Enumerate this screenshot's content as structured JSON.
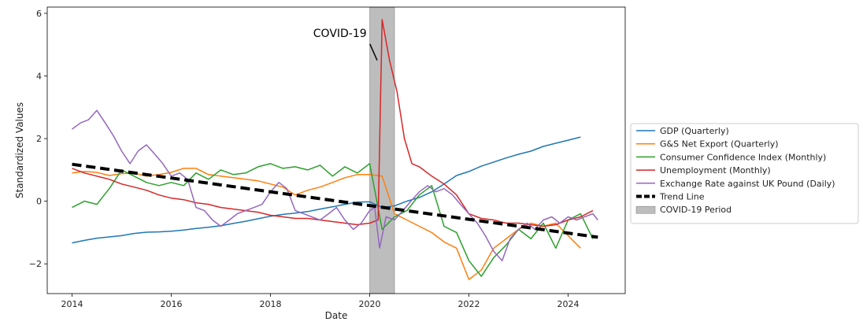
{
  "chart_data": {
    "type": "line",
    "xlabel": "Date",
    "ylabel": "Standardized Values",
    "xlim": [
      2013.5,
      2025.15
    ],
    "ylim": [
      -2.95,
      6.2
    ],
    "x_ticks": [
      2014,
      2016,
      2018,
      2020,
      2022,
      2024
    ],
    "y_ticks": [
      -2,
      0,
      2,
      4,
      6
    ],
    "grid": false,
    "legend": {
      "placement": "right-outside"
    },
    "series": [
      {
        "name": "GDP (Quarterly)",
        "color": "#1f77b4",
        "x": [
          2014.0,
          2014.25,
          2014.5,
          2014.75,
          2015.0,
          2015.25,
          2015.5,
          2015.75,
          2016.0,
          2016.25,
          2016.5,
          2016.75,
          2017.0,
          2017.25,
          2017.5,
          2017.75,
          2018.0,
          2018.25,
          2018.5,
          2018.75,
          2019.0,
          2019.25,
          2019.5,
          2019.75,
          2020.0,
          2020.25,
          2020.5,
          2020.75,
          2021.0,
          2021.25,
          2021.5,
          2021.75,
          2022.0,
          2022.25,
          2022.5,
          2022.75,
          2023.0,
          2023.25,
          2023.5,
          2023.75,
          2024.0,
          2024.25
        ],
        "y": [
          -1.33,
          -1.25,
          -1.18,
          -1.14,
          -1.1,
          -1.03,
          -0.99,
          -0.98,
          -0.96,
          -0.92,
          -0.87,
          -0.83,
          -0.78,
          -0.71,
          -0.64,
          -0.56,
          -0.48,
          -0.42,
          -0.38,
          -0.33,
          -0.25,
          -0.18,
          -0.1,
          -0.03,
          -0.02,
          -0.2,
          -0.15,
          0.0,
          0.12,
          0.3,
          0.55,
          0.82,
          0.95,
          1.12,
          1.25,
          1.38,
          1.5,
          1.6,
          1.75,
          1.85,
          1.95,
          2.05
        ]
      },
      {
        "name": "G&S Net Export (Quarterly)",
        "color": "#ff7f0e",
        "x": [
          2014.0,
          2014.25,
          2014.5,
          2014.75,
          2015.0,
          2015.25,
          2015.5,
          2015.75,
          2016.0,
          2016.25,
          2016.5,
          2016.75,
          2017.0,
          2017.25,
          2017.5,
          2017.75,
          2018.0,
          2018.25,
          2018.5,
          2018.75,
          2019.0,
          2019.25,
          2019.5,
          2019.75,
          2020.0,
          2020.25,
          2020.5,
          2020.75,
          2021.0,
          2021.25,
          2021.5,
          2021.75,
          2022.0,
          2022.25,
          2022.5,
          2022.75,
          2023.0,
          2023.25,
          2023.5,
          2023.75,
          2024.0,
          2024.25
        ],
        "y": [
          0.9,
          0.95,
          0.92,
          0.82,
          0.88,
          0.9,
          0.8,
          0.85,
          0.92,
          1.05,
          1.05,
          0.85,
          0.8,
          0.75,
          0.7,
          0.65,
          0.55,
          0.45,
          0.2,
          0.35,
          0.45,
          0.6,
          0.75,
          0.85,
          0.85,
          0.8,
          -0.4,
          -0.6,
          -0.8,
          -1.0,
          -1.3,
          -1.5,
          -2.5,
          -2.2,
          -1.5,
          -1.2,
          -0.9,
          -0.7,
          -0.8,
          -0.7,
          -1.1,
          -1.5
        ]
      },
      {
        "name": "Consumer Confidence Index (Monthly)",
        "color": "#2ca02c",
        "x": [
          2014.0,
          2014.25,
          2014.5,
          2014.75,
          2015.0,
          2015.25,
          2015.5,
          2015.75,
          2016.0,
          2016.25,
          2016.5,
          2016.75,
          2017.0,
          2017.25,
          2017.5,
          2017.75,
          2018.0,
          2018.25,
          2018.5,
          2018.75,
          2019.0,
          2019.25,
          2019.5,
          2019.75,
          2020.0,
          2020.25,
          2020.5,
          2020.75,
          2021.0,
          2021.25,
          2021.5,
          2021.75,
          2022.0,
          2022.25,
          2022.5,
          2022.75,
          2023.0,
          2023.25,
          2023.5,
          2023.75,
          2024.0,
          2024.25,
          2024.5
        ],
        "y": [
          -0.2,
          0.0,
          -0.1,
          0.4,
          1.0,
          0.8,
          0.6,
          0.5,
          0.6,
          0.5,
          0.9,
          0.7,
          1.0,
          0.85,
          0.9,
          1.1,
          1.2,
          1.05,
          1.1,
          1.0,
          1.15,
          0.8,
          1.1,
          0.9,
          1.2,
          -0.9,
          -0.5,
          -0.3,
          0.2,
          0.5,
          -0.8,
          -1.0,
          -1.9,
          -2.4,
          -1.8,
          -1.4,
          -0.9,
          -1.2,
          -0.7,
          -1.5,
          -0.6,
          -0.4,
          -1.2
        ]
      },
      {
        "name": "Unemployment (Monthly)",
        "color": "#d62728",
        "x": [
          2014.0,
          2014.25,
          2014.5,
          2014.75,
          2015.0,
          2015.25,
          2015.5,
          2015.75,
          2016.0,
          2016.25,
          2016.5,
          2016.75,
          2017.0,
          2017.25,
          2017.5,
          2017.75,
          2018.0,
          2018.25,
          2018.5,
          2018.75,
          2019.0,
          2019.25,
          2019.5,
          2019.75,
          2020.0,
          2020.17,
          2020.25,
          2020.4,
          2020.55,
          2020.7,
          2020.85,
          2021.0,
          2021.25,
          2021.5,
          2021.75,
          2022.0,
          2022.25,
          2022.5,
          2022.75,
          2023.0,
          2023.25,
          2023.5,
          2023.75,
          2024.0,
          2024.25,
          2024.5
        ],
        "y": [
          1.05,
          0.9,
          0.8,
          0.7,
          0.55,
          0.45,
          0.35,
          0.2,
          0.1,
          0.05,
          -0.05,
          -0.1,
          -0.2,
          -0.25,
          -0.3,
          -0.35,
          -0.45,
          -0.5,
          -0.55,
          -0.55,
          -0.6,
          -0.65,
          -0.7,
          -0.75,
          -0.7,
          -0.6,
          5.8,
          4.5,
          3.5,
          2.0,
          1.2,
          1.1,
          0.8,
          0.55,
          0.2,
          -0.4,
          -0.55,
          -0.6,
          -0.7,
          -0.7,
          -0.75,
          -0.8,
          -0.75,
          -0.6,
          -0.5,
          -0.3
        ]
      },
      {
        "name": "Exchange Rate against UK Pound (Daily)",
        "color": "#9467bd",
        "x": [
          2014.0,
          2014.17,
          2014.33,
          2014.5,
          2014.67,
          2014.83,
          2015.0,
          2015.17,
          2015.33,
          2015.5,
          2015.67,
          2015.83,
          2016.0,
          2016.17,
          2016.33,
          2016.5,
          2016.67,
          2016.83,
          2017.0,
          2017.17,
          2017.33,
          2017.5,
          2017.67,
          2017.83,
          2018.0,
          2018.17,
          2018.33,
          2018.5,
          2018.67,
          2018.83,
          2019.0,
          2019.17,
          2019.33,
          2019.5,
          2019.67,
          2019.83,
          2020.0,
          2020.1,
          2020.2,
          2020.33,
          2020.5,
          2020.67,
          2020.83,
          2021.0,
          2021.17,
          2021.33,
          2021.5,
          2021.67,
          2021.83,
          2022.0,
          2022.17,
          2022.33,
          2022.5,
          2022.67,
          2022.83,
          2023.0,
          2023.17,
          2023.33,
          2023.5,
          2023.67,
          2023.83,
          2024.0,
          2024.17,
          2024.33,
          2024.5,
          2024.6
        ],
        "y": [
          2.3,
          2.5,
          2.6,
          2.9,
          2.5,
          2.1,
          1.6,
          1.2,
          1.6,
          1.8,
          1.5,
          1.2,
          0.8,
          0.9,
          0.7,
          -0.2,
          -0.3,
          -0.6,
          -0.8,
          -0.6,
          -0.4,
          -0.3,
          -0.2,
          -0.1,
          0.3,
          0.6,
          0.4,
          -0.3,
          -0.4,
          -0.5,
          -0.6,
          -0.4,
          -0.2,
          -0.6,
          -0.9,
          -0.7,
          -0.3,
          -0.2,
          -1.5,
          -0.5,
          -0.6,
          -0.3,
          0.0,
          0.3,
          0.5,
          0.3,
          0.4,
          0.2,
          -0.1,
          -0.4,
          -0.7,
          -1.1,
          -1.6,
          -1.9,
          -1.2,
          -0.9,
          -0.7,
          -0.9,
          -0.6,
          -0.5,
          -0.7,
          -0.5,
          -0.6,
          -0.5,
          -0.4,
          -0.6
        ]
      },
      {
        "name": "Trend Line",
        "color": "#000000",
        "style": "dashed",
        "x": [
          2014.0,
          2024.6
        ],
        "y": [
          1.18,
          -1.15
        ]
      }
    ],
    "shaded_regions": [
      {
        "name": "COVID-19 Period",
        "color": "#bdbdbd",
        "x0": 2020.0,
        "x1": 2020.5
      }
    ],
    "annotations": [
      {
        "text": "COVID-19",
        "x": 2019.4,
        "y": 5.25,
        "arrow_to": {
          "x": 2020.15,
          "y": 4.5
        }
      }
    ]
  }
}
